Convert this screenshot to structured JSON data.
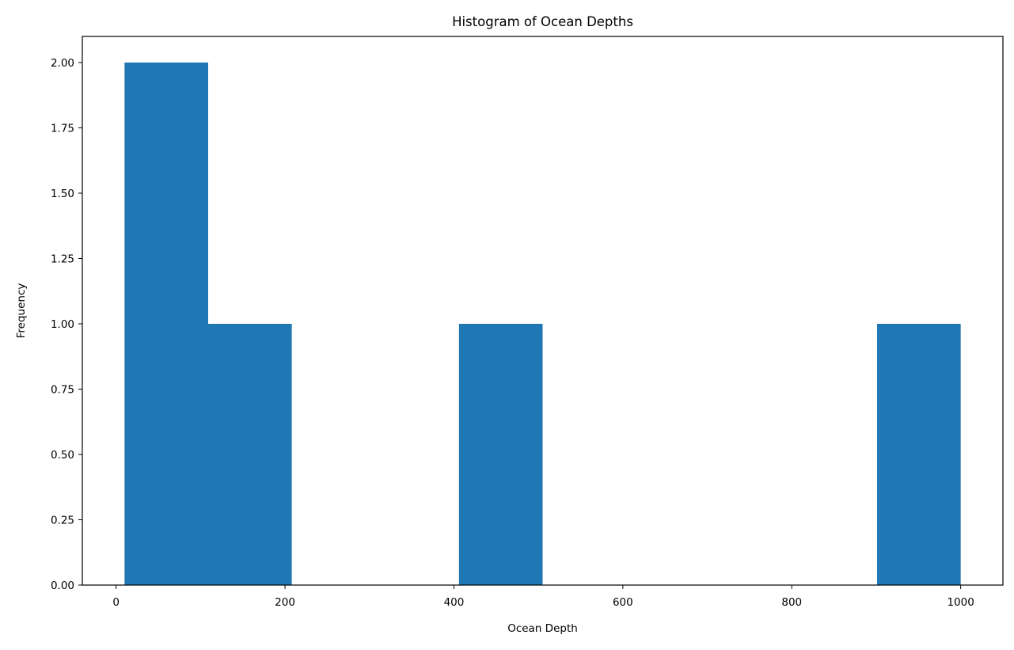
{
  "chart_data": {
    "type": "bar",
    "title": "Histogram of Ocean Depths",
    "xlabel": "Ocean Depth",
    "ylabel": "Frequency",
    "xlim": [
      -40,
      1050
    ],
    "ylim": [
      0,
      2.1
    ],
    "x_ticks": [
      0,
      200,
      400,
      600,
      800,
      1000
    ],
    "x_tick_labels": [
      "0",
      "200",
      "400",
      "600",
      "800",
      "1000"
    ],
    "y_ticks": [
      0,
      0.25,
      0.5,
      0.75,
      1.0,
      1.25,
      1.5,
      1.75,
      2.0
    ],
    "y_tick_labels": [
      "0.00",
      "0.25",
      "0.50",
      "0.75",
      "1.00",
      "1.25",
      "1.50",
      "1.75",
      "2.00"
    ],
    "bins": [
      {
        "x0": 10,
        "x1": 109,
        "count": 2
      },
      {
        "x0": 109,
        "x1": 208,
        "count": 1
      },
      {
        "x0": 208,
        "x1": 307,
        "count": 0
      },
      {
        "x0": 307,
        "x1": 406,
        "count": 0
      },
      {
        "x0": 406,
        "x1": 505,
        "count": 1
      },
      {
        "x0": 505,
        "x1": 604,
        "count": 0
      },
      {
        "x0": 604,
        "x1": 703,
        "count": 0
      },
      {
        "x0": 703,
        "x1": 802,
        "count": 0
      },
      {
        "x0": 802,
        "x1": 901,
        "count": 0
      },
      {
        "x0": 901,
        "x1": 1000,
        "count": 1
      }
    ],
    "bar_color": "#1f77b4",
    "grid": false,
    "legend": false
  }
}
